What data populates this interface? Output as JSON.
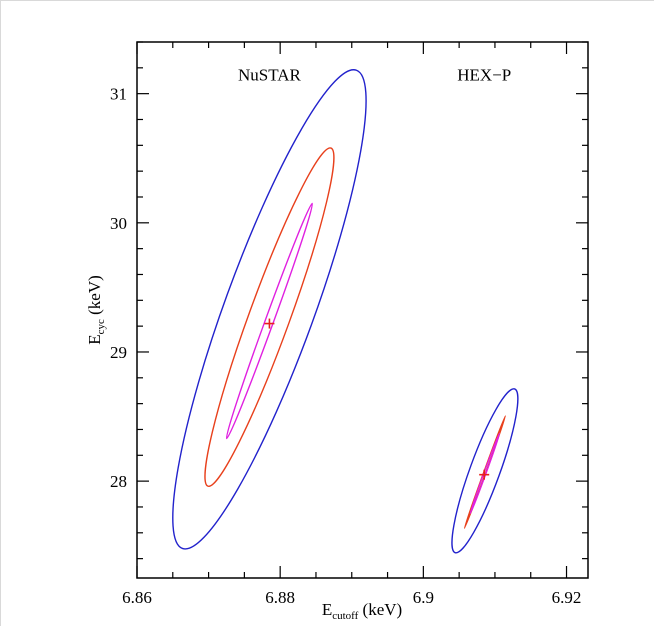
{
  "chart_data": {
    "type": "contour",
    "xlabel": {
      "main": "E",
      "sub": "cutoff",
      "unit": " (keV)"
    },
    "ylabel": {
      "main": "E",
      "sub": "cyc",
      "unit": " (keV)"
    },
    "xlim": [
      6.86,
      6.923
    ],
    "ylim": [
      27.25,
      31.4
    ],
    "x_ticks": [
      6.86,
      6.88,
      6.9,
      6.92
    ],
    "x_tick_labels": [
      "6.86",
      "6.88",
      "6.9",
      "6.92"
    ],
    "y_ticks": [
      28,
      29,
      30,
      31
    ],
    "y_tick_labels": [
      "28",
      "29",
      "30",
      "31"
    ],
    "annotations": [
      {
        "text": "NuSTAR",
        "x": 6.8785,
        "y": 31.15
      },
      {
        "text": "HEX−P",
        "x": 6.9085,
        "y": 31.15
      }
    ],
    "series": [
      {
        "best_fit": {
          "x": 6.8785,
          "y": 29.22
        },
        "contours": [
          {
            "color": "#2222cc",
            "center": [
              6.8785,
              29.33
            ],
            "x_min": 6.865,
            "x_max": 6.892,
            "y_min": 27.48,
            "y_max": 31.19
          },
          {
            "color": "#e8401c",
            "center": [
              6.8785,
              29.27
            ],
            "x_min": 6.8695,
            "x_max": 6.8875,
            "y_min": 27.96,
            "y_max": 30.58
          },
          {
            "color": "#e020e0",
            "center": [
              6.8785,
              29.24
            ],
            "x_min": 6.8725,
            "x_max": 6.8845,
            "y_min": 28.33,
            "y_max": 30.15
          }
        ]
      },
      {
        "best_fit": {
          "x": 6.9085,
          "y": 28.05
        },
        "contours": [
          {
            "color": "#2222cc",
            "center": [
              6.9086,
              28.08
            ],
            "x_min": 6.904,
            "x_max": 6.9132,
            "y_min": 27.44,
            "y_max": 28.71
          },
          {
            "color": "#e8401c",
            "center": [
              6.9086,
              28.07
            ],
            "x_min": 6.9058,
            "x_max": 6.9115,
            "y_min": 27.65,
            "y_max": 28.52
          },
          {
            "color": "#e020e0",
            "center": [
              6.9086,
              28.06
            ],
            "x_min": 6.9068,
            "x_max": 6.9104,
            "y_min": 27.76,
            "y_max": 28.38
          }
        ]
      }
    ]
  }
}
